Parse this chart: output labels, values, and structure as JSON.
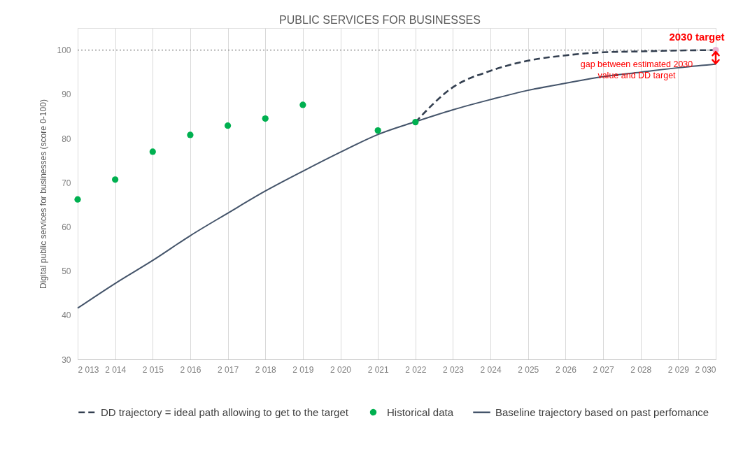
{
  "chart_data": {
    "type": "line",
    "title": "PUBLIC SERVICES FOR BUSINESSES",
    "ylabel": "Digital public services for businesses (score 0-100)",
    "xlim": [
      2013,
      2030
    ],
    "xticks": [
      {
        "value": 2013,
        "label": "2 013"
      },
      {
        "value": 2014,
        "label": "2 014"
      },
      {
        "value": 2015,
        "label": "2 015"
      },
      {
        "value": 2016,
        "label": "2 016"
      },
      {
        "value": 2017,
        "label": "2 017"
      },
      {
        "value": 2018,
        "label": "2 018"
      },
      {
        "value": 2019,
        "label": "2 019"
      },
      {
        "value": 2020,
        "label": "2 020"
      },
      {
        "value": 2021,
        "label": "2 021"
      },
      {
        "value": 2022,
        "label": "2 022"
      },
      {
        "value": 2023,
        "label": "2 023"
      },
      {
        "value": 2024,
        "label": "2 024"
      },
      {
        "value": 2025,
        "label": "2 025"
      },
      {
        "value": 2026,
        "label": "2 026"
      },
      {
        "value": 2027,
        "label": "2 027"
      },
      {
        "value": 2028,
        "label": "2 028"
      },
      {
        "value": 2029,
        "label": "2 029"
      },
      {
        "value": 2030,
        "label": "2 030"
      }
    ],
    "ylim": [
      30,
      105
    ],
    "yticks": [
      30,
      40,
      50,
      60,
      70,
      80,
      90,
      100
    ],
    "grid": "x",
    "legend": "bottom",
    "series": [
      {
        "name": "DD trajectory = ideal path allowing to get to the target",
        "line_style": "dashed",
        "color": "#333f50",
        "x": [
          2022,
          2023,
          2024,
          2025,
          2026,
          2027,
          2028,
          2029,
          2030
        ],
        "values": [
          83.7,
          91.6,
          95.3,
          97.6,
          98.8,
          99.5,
          99.7,
          99.9,
          100
        ]
      },
      {
        "name": "Historical data",
        "type": "scatter",
        "marker": "circle",
        "color": "#00b050",
        "x": [
          2013,
          2014,
          2015,
          2016,
          2017,
          2018,
          2019,
          2021,
          2022
        ],
        "values": [
          66.2,
          70.7,
          77.0,
          80.8,
          82.9,
          84.5,
          87.6,
          81.8,
          83.7
        ]
      },
      {
        "name": "Baseline trajectory based on past perfomance",
        "line_style": "solid",
        "color": "#44546a",
        "x": [
          2013,
          2014,
          2015,
          2016,
          2017,
          2018,
          2019,
          2020,
          2021,
          2022,
          2023,
          2024,
          2025,
          2026,
          2027,
          2028,
          2029,
          2030
        ],
        "values": [
          41.6,
          47.2,
          52.4,
          58.0,
          63.1,
          68.1,
          72.6,
          76.9,
          80.9,
          83.8,
          86.5,
          88.8,
          90.9,
          92.5,
          94.0,
          95.0,
          96.0,
          96.8
        ]
      },
      {
        "type": "scatter",
        "marker": "circle",
        "color": "#ebb0d2",
        "x": [
          2030
        ],
        "values": [
          100
        ]
      }
    ],
    "ref_lines": [
      {
        "axis": "y",
        "value": 100,
        "color": "#7f7f7f",
        "line_style": "dotted"
      }
    ],
    "annotations": [
      {
        "text": "2030 target",
        "x": 2030,
        "y": 100
      },
      {
        "text": "gap between estimated 2030 value and DD target",
        "x": 2030,
        "y": 96.8
      }
    ]
  }
}
